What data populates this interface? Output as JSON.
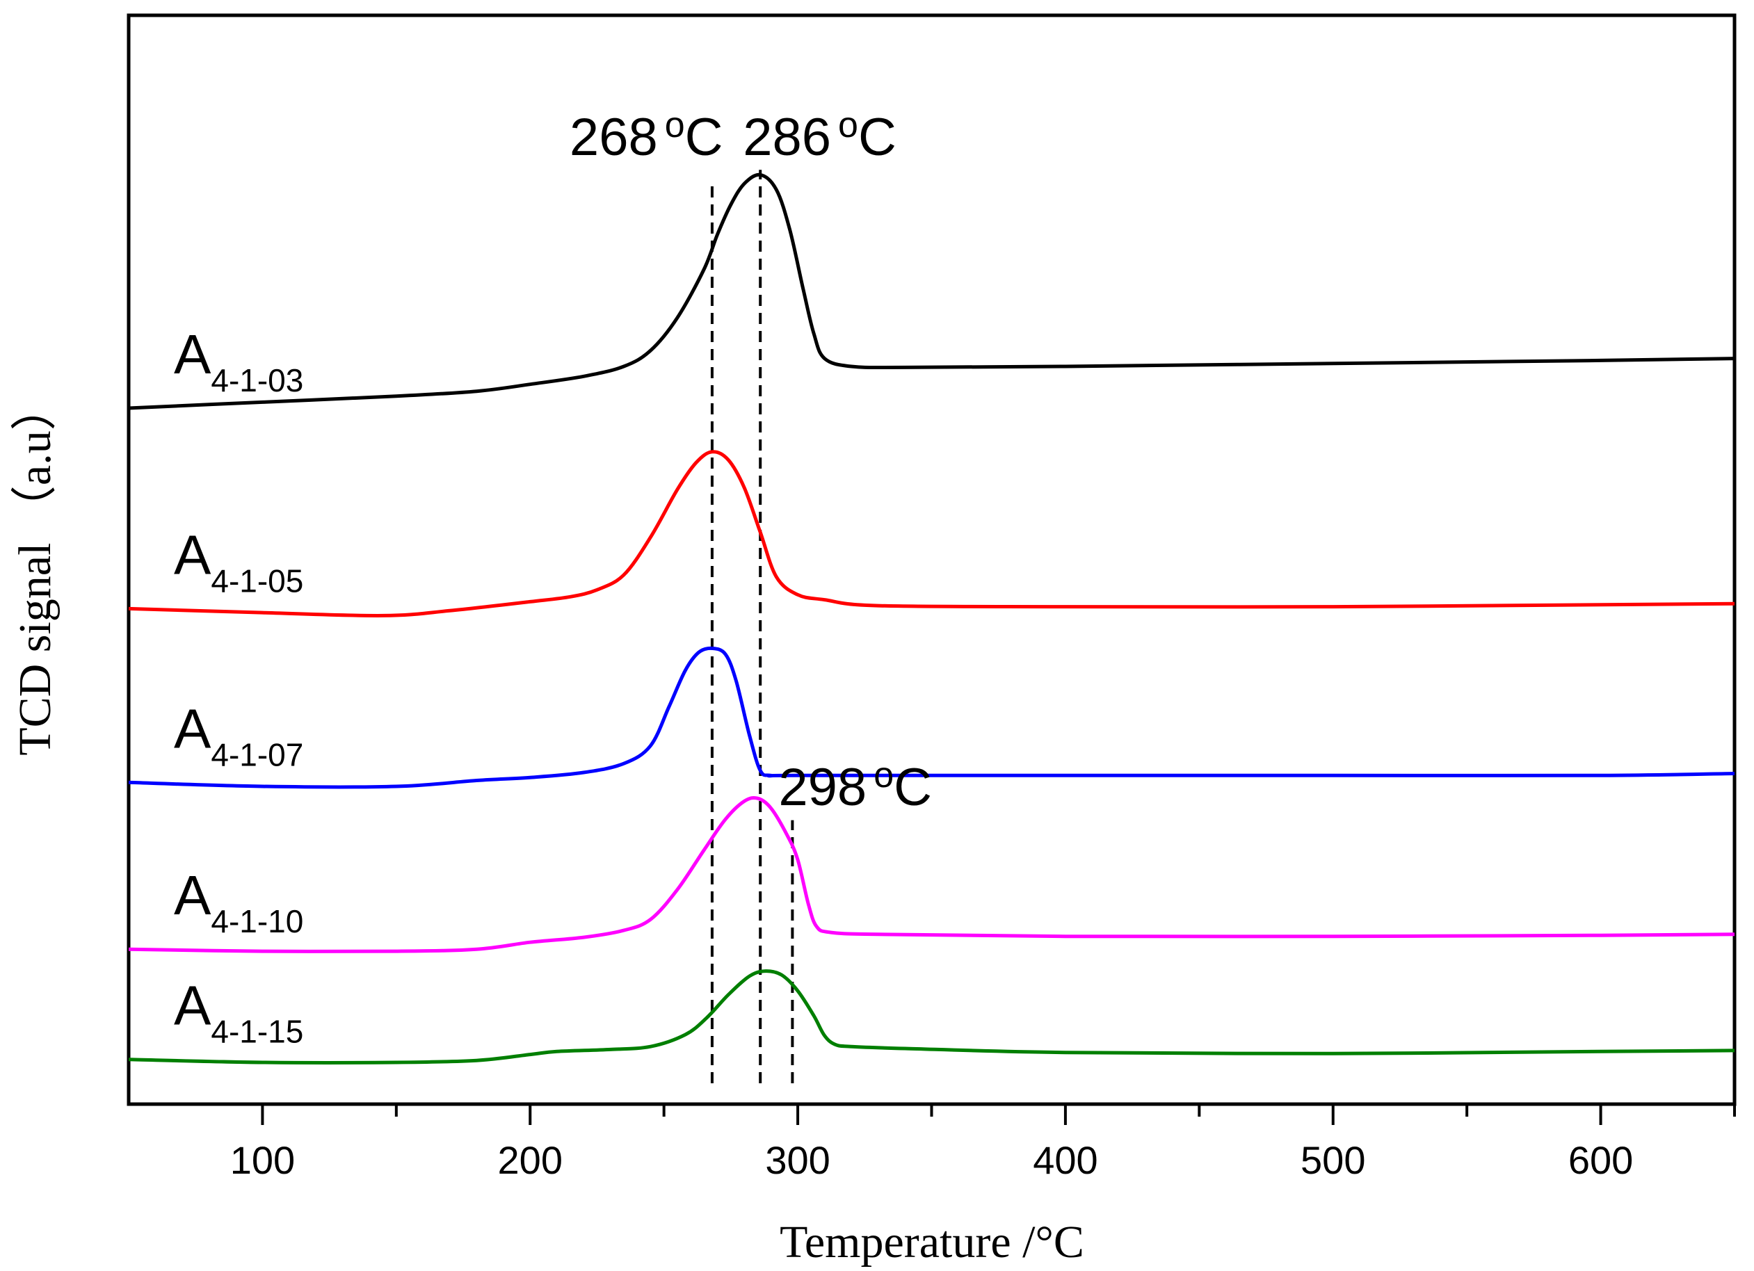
{
  "chart_data": {
    "type": "line",
    "title": "",
    "xlabel": "Temperature /°C",
    "ylabel": "TCD signal （a.u）",
    "xlim": [
      50,
      650
    ],
    "ylim": [
      0,
      100
    ],
    "xticks": [
      100,
      200,
      300,
      400,
      500,
      600
    ],
    "xtick_labels": [
      "100",
      "200",
      "300",
      "400",
      "500",
      "600"
    ],
    "x_minor_ticks": [
      150,
      250,
      350,
      450,
      550,
      650
    ],
    "grid": false,
    "legend": "inline labels at left",
    "series": [
      {
        "name": "A4-1-03",
        "label_main": "A",
        "label_sub": "4-1-03",
        "color": "#000000",
        "x": [
          50,
          100,
          150,
          180,
          200,
          220,
          235,
          245,
          255,
          265,
          270,
          275,
          280,
          286,
          292,
          297,
          302,
          306,
          310,
          320,
          340,
          400,
          500,
          600,
          650
        ],
        "y": [
          68.0,
          68.6,
          69.2,
          69.7,
          70.4,
          71.2,
          72.2,
          73.8,
          77.1,
          82.0,
          85.5,
          88.5,
          90.6,
          91.5,
          90.0,
          86.0,
          80.0,
          75.5,
          73.0,
          72.2,
          72.1,
          72.2,
          72.5,
          72.8,
          73.0
        ],
        "legend_index": 0
      },
      {
        "name": "A4-1-05",
        "label_main": "A",
        "label_sub": "4-1-05",
        "color": "#ff0000",
        "x": [
          50,
          100,
          145,
          170,
          200,
          215,
          225,
          235,
          245,
          255,
          262,
          268,
          274,
          280,
          286,
          292,
          300,
          310,
          330,
          400,
          500,
          600,
          650
        ],
        "y": [
          47.8,
          47.4,
          47.1,
          47.6,
          48.5,
          49.0,
          49.7,
          51.2,
          55.0,
          59.8,
          62.5,
          63.6,
          62.8,
          60.0,
          55.5,
          51.0,
          49.2,
          48.7,
          48.1,
          48.0,
          48.0,
          48.2,
          48.3
        ],
        "legend_index": 1
      },
      {
        "name": "A4-1-07",
        "label_main": "A",
        "label_sub": "4-1-07",
        "color": "#0000ff",
        "x": [
          50,
          100,
          150,
          180,
          200,
          220,
          235,
          245,
          252,
          258,
          263,
          268,
          273,
          277,
          282,
          286,
          290,
          300,
          400,
          500,
          600,
          650
        ],
        "y": [
          30.3,
          29.9,
          29.9,
          30.5,
          30.8,
          31.3,
          32.2,
          34.0,
          38.0,
          41.6,
          43.4,
          43.8,
          43.2,
          40.5,
          35.0,
          31.5,
          31.0,
          31.0,
          31.0,
          31.0,
          31.0,
          31.2
        ],
        "legend_index": 2
      },
      {
        "name": "A4-1-10",
        "label_main": "A",
        "label_sub": "4-1-10",
        "color": "#ff00ff",
        "x": [
          50,
          100,
          150,
          180,
          200,
          220,
          235,
          245,
          255,
          265,
          273,
          280,
          285,
          290,
          296,
          300,
          304,
          307,
          312,
          330,
          400,
          500,
          600,
          650
        ],
        "y": [
          13.5,
          13.3,
          13.3,
          13.5,
          14.2,
          14.7,
          15.4,
          16.5,
          19.5,
          23.5,
          26.6,
          28.4,
          28.7,
          27.7,
          25.0,
          22.5,
          18.0,
          15.8,
          15.2,
          15.0,
          14.8,
          14.8,
          14.9,
          15.0
        ],
        "legend_index": 3
      },
      {
        "name": "A4-1-15",
        "label_main": "A",
        "label_sub": "4-1-15",
        "color": "#007f00",
        "x": [
          50,
          100,
          150,
          180,
          200,
          210,
          230,
          245,
          258,
          266,
          274,
          282,
          288,
          294,
          300,
          306,
          310,
          314,
          320,
          340,
          400,
          500,
          600,
          650
        ],
        "y": [
          2.4,
          2.1,
          2.1,
          2.3,
          2.9,
          3.2,
          3.4,
          3.7,
          4.9,
          6.6,
          8.9,
          10.8,
          11.3,
          10.9,
          9.3,
          6.8,
          4.8,
          3.9,
          3.7,
          3.5,
          3.1,
          3.0,
          3.2,
          3.3
        ],
        "legend_index": 4
      }
    ],
    "reference_lines": [
      {
        "x": 268,
        "y_from": 0,
        "y_to": 91,
        "style": "dashed"
      },
      {
        "x": 286,
        "y_from": 0,
        "y_to": 92,
        "style": "dashed"
      },
      {
        "x": 298,
        "y_from": 0,
        "y_to": 26.5,
        "style": "dashed"
      }
    ],
    "annotations": [
      {
        "text": "268",
        "x_data": 268,
        "y_data": 93.5,
        "id": "a268"
      },
      {
        "text": "286",
        "x_data": 286,
        "y_data": 93.5,
        "id": "a286"
      },
      {
        "text": "298",
        "x_data": 298,
        "y_data": 28.0,
        "id": "a298"
      }
    ],
    "degree_symbol": "o",
    "unit": "C"
  }
}
